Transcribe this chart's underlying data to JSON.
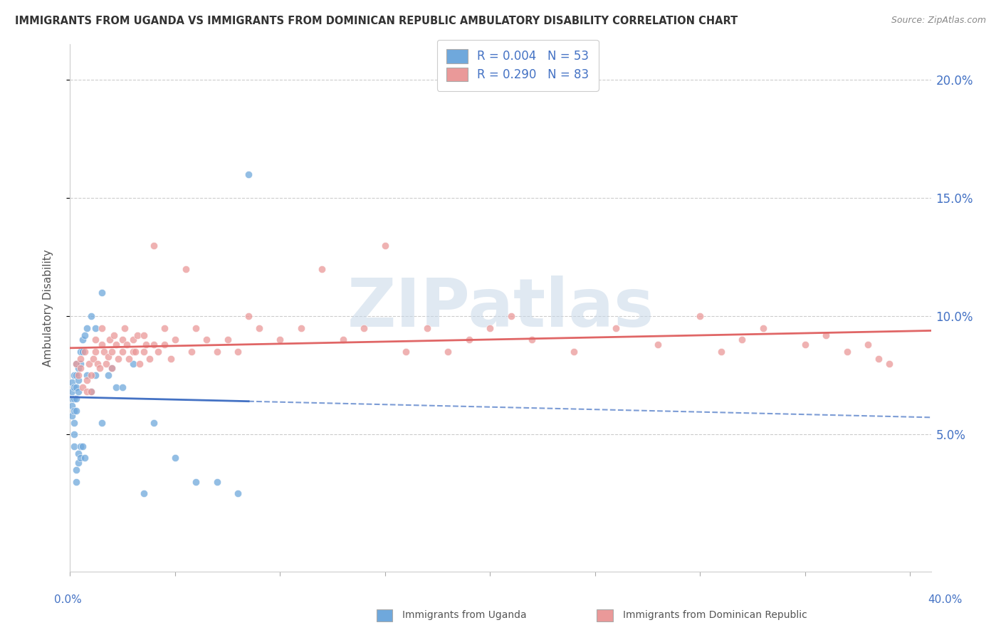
{
  "title": "IMMIGRANTS FROM UGANDA VS IMMIGRANTS FROM DOMINICAN REPUBLIC AMBULATORY DISABILITY CORRELATION CHART",
  "source": "Source: ZipAtlas.com",
  "ylabel": "Ambulatory Disability",
  "xlim": [
    0.0,
    0.41
  ],
  "ylim": [
    -0.008,
    0.215
  ],
  "yticks": [
    0.05,
    0.1,
    0.15,
    0.2
  ],
  "ytick_labels": [
    "5.0%",
    "10.0%",
    "15.0%",
    "20.0%"
  ],
  "uganda_color": "#6fa8dc",
  "dr_color": "#ea9999",
  "uganda_line_color": "#4472c4",
  "dr_line_color": "#e06666",
  "legend_label1": "R = 0.004   N = 53",
  "legend_label2": "R = 0.290   N = 83",
  "bottom_label1": "Immigrants from Uganda",
  "bottom_label2": "Immigrants from Dominican Republic",
  "watermark": "ZIPatlas",
  "uganda_x": [
    0.001,
    0.001,
    0.001,
    0.001,
    0.001,
    0.002,
    0.002,
    0.002,
    0.002,
    0.002,
    0.002,
    0.002,
    0.003,
    0.003,
    0.003,
    0.003,
    0.003,
    0.003,
    0.003,
    0.004,
    0.004,
    0.004,
    0.004,
    0.004,
    0.005,
    0.005,
    0.005,
    0.005,
    0.006,
    0.006,
    0.006,
    0.007,
    0.007,
    0.008,
    0.008,
    0.01,
    0.01,
    0.012,
    0.012,
    0.015,
    0.015,
    0.018,
    0.02,
    0.022,
    0.025,
    0.03,
    0.035,
    0.04,
    0.05,
    0.06,
    0.07,
    0.08,
    0.085
  ],
  "uganda_y": [
    0.072,
    0.068,
    0.065,
    0.062,
    0.058,
    0.075,
    0.07,
    0.065,
    0.06,
    0.055,
    0.05,
    0.045,
    0.08,
    0.075,
    0.07,
    0.065,
    0.06,
    0.035,
    0.03,
    0.078,
    0.073,
    0.068,
    0.042,
    0.038,
    0.085,
    0.08,
    0.045,
    0.04,
    0.09,
    0.085,
    0.045,
    0.092,
    0.04,
    0.095,
    0.075,
    0.1,
    0.068,
    0.095,
    0.075,
    0.11,
    0.055,
    0.075,
    0.078,
    0.07,
    0.07,
    0.08,
    0.025,
    0.055,
    0.04,
    0.03,
    0.03,
    0.025,
    0.16
  ],
  "dr_x": [
    0.003,
    0.004,
    0.005,
    0.005,
    0.006,
    0.007,
    0.008,
    0.008,
    0.009,
    0.01,
    0.01,
    0.011,
    0.012,
    0.012,
    0.013,
    0.014,
    0.015,
    0.015,
    0.016,
    0.017,
    0.018,
    0.019,
    0.02,
    0.02,
    0.021,
    0.022,
    0.023,
    0.025,
    0.025,
    0.026,
    0.027,
    0.028,
    0.03,
    0.03,
    0.031,
    0.032,
    0.033,
    0.035,
    0.035,
    0.036,
    0.038,
    0.04,
    0.04,
    0.042,
    0.045,
    0.045,
    0.048,
    0.05,
    0.055,
    0.058,
    0.06,
    0.065,
    0.07,
    0.075,
    0.08,
    0.085,
    0.09,
    0.1,
    0.11,
    0.12,
    0.13,
    0.14,
    0.15,
    0.16,
    0.17,
    0.18,
    0.19,
    0.2,
    0.21,
    0.22,
    0.24,
    0.26,
    0.28,
    0.3,
    0.31,
    0.32,
    0.33,
    0.35,
    0.36,
    0.37,
    0.38,
    0.385,
    0.39
  ],
  "dr_y": [
    0.08,
    0.075,
    0.082,
    0.078,
    0.07,
    0.085,
    0.068,
    0.073,
    0.08,
    0.075,
    0.068,
    0.082,
    0.09,
    0.085,
    0.08,
    0.078,
    0.095,
    0.088,
    0.085,
    0.08,
    0.083,
    0.09,
    0.078,
    0.085,
    0.092,
    0.088,
    0.082,
    0.09,
    0.085,
    0.095,
    0.088,
    0.082,
    0.085,
    0.09,
    0.085,
    0.092,
    0.08,
    0.085,
    0.092,
    0.088,
    0.082,
    0.13,
    0.088,
    0.085,
    0.095,
    0.088,
    0.082,
    0.09,
    0.12,
    0.085,
    0.095,
    0.09,
    0.085,
    0.09,
    0.085,
    0.1,
    0.095,
    0.09,
    0.095,
    0.12,
    0.09,
    0.095,
    0.13,
    0.085,
    0.095,
    0.085,
    0.09,
    0.095,
    0.1,
    0.09,
    0.085,
    0.095,
    0.088,
    0.1,
    0.085,
    0.09,
    0.095,
    0.088,
    0.092,
    0.085,
    0.088,
    0.082,
    0.08
  ]
}
